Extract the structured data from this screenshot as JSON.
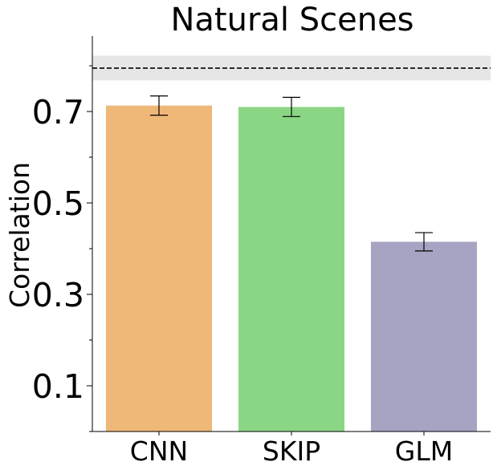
{
  "chart_data": {
    "type": "bar",
    "title": "Natural Scenes",
    "xlabel": "",
    "ylabel": "Correlation",
    "categories": [
      "CNN",
      "SKIP",
      "GLM"
    ],
    "values": [
      0.713,
      0.71,
      0.415
    ],
    "errors": [
      0.021,
      0.021,
      0.02
    ],
    "colors": [
      "#efb778",
      "#8bd685",
      "#a6a3c3"
    ],
    "ylim": [
      0.0,
      0.865
    ],
    "yticks_major": [
      0.1,
      0.3,
      0.5,
      0.7
    ],
    "ytick_labels": [
      "0.1",
      "0.3",
      "0.5",
      "0.7"
    ],
    "yticks_minor": [
      0.0,
      0.2,
      0.4,
      0.6,
      0.8
    ],
    "reference": {
      "value": 0.795,
      "band": [
        0.768,
        0.822
      ],
      "line_color": "#000000",
      "band_color": "#e6e6e6"
    },
    "grid": false
  }
}
